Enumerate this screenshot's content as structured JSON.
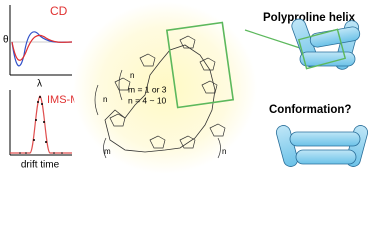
{
  "cd_panel": {
    "label": "CD",
    "y_symbol": "θ",
    "x_symbol": "λ"
  },
  "ims_panel": {
    "label": "IMS-MS",
    "x_label": "drift time"
  },
  "structure": {
    "m_note": "m = 1 or 3",
    "n_note": "n = 4 ~ 10",
    "repeat_labels": [
      "n",
      "n",
      "m",
      "n"
    ]
  },
  "right": {
    "helix_label": "Polyproline helix",
    "question": "Conformation?"
  }
}
